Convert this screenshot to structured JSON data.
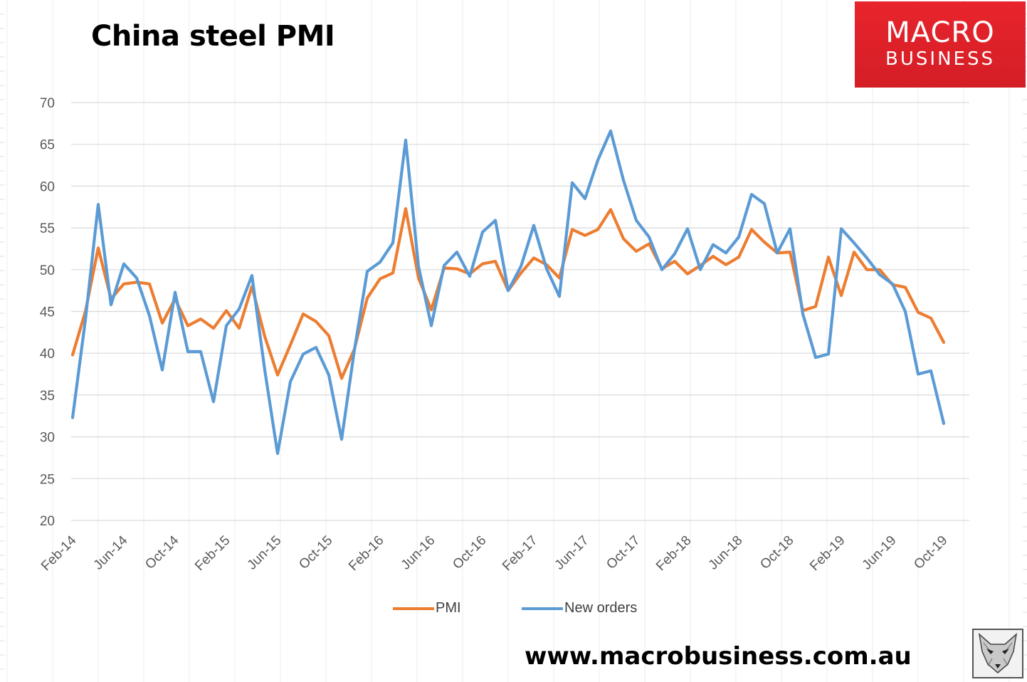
{
  "header": {
    "title": "China steel PMI"
  },
  "brand": {
    "line1": "MACRO",
    "line2": "BUSINESS",
    "color": "#e3222a"
  },
  "footer": {
    "url": "www.macrobusiness.com.au"
  },
  "colors": {
    "pmi": "#ed7d31",
    "new_orders": "#5b9bd5",
    "grid": "#d9d9d9",
    "axis_text": "#595959"
  },
  "chart_data": {
    "type": "line",
    "title": "China steel PMI",
    "xlabel": "",
    "ylabel": "",
    "ylim": [
      20,
      70
    ],
    "yticks": [
      20,
      25,
      30,
      35,
      40,
      45,
      50,
      55,
      60,
      65,
      70
    ],
    "x_start": "Feb-14",
    "x_tick_labels": [
      "Feb-14",
      "Jun-14",
      "Oct-14",
      "Feb-15",
      "Jun-15",
      "Oct-15",
      "Feb-16",
      "Jun-16",
      "Oct-16",
      "Feb-17",
      "Jun-17",
      "Oct-17",
      "Feb-18",
      "Jun-18",
      "Oct-18",
      "Feb-19",
      "Jun-19",
      "Oct-19"
    ],
    "grid": true,
    "legend_position": "bottom",
    "series": [
      {
        "name": "PMI",
        "values": [
          39.8,
          45.0,
          52.6,
          46.5,
          48.3,
          48.5,
          48.3,
          43.6,
          46.5,
          43.3,
          44.1,
          43.0,
          45.1,
          43.0,
          48.0,
          42.0,
          37.4,
          41.0,
          44.7,
          43.8,
          42.1,
          37.0,
          40.5,
          46.6,
          48.9,
          49.6,
          57.3,
          49.0,
          45.2,
          50.2,
          50.1,
          49.5,
          50.7,
          51.0,
          47.5,
          49.6,
          51.4,
          50.6,
          49.0,
          54.8,
          54.1,
          54.8,
          57.2,
          53.7,
          52.2,
          53.1,
          50.1,
          51.0,
          49.5,
          50.5,
          51.6,
          50.6,
          51.5,
          54.8,
          53.3,
          52.0,
          52.1,
          45.1,
          45.6,
          51.5,
          46.9,
          52.1,
          50.0,
          50.0,
          48.2,
          47.9,
          44.9,
          44.2,
          41.3
        ]
      },
      {
        "name": "New orders",
        "values": [
          32.3,
          44.0,
          57.8,
          45.8,
          50.7,
          49.0,
          44.5,
          38.0,
          47.3,
          40.2,
          40.2,
          34.2,
          43.3,
          45.3,
          49.3,
          38.0,
          28.0,
          36.6,
          39.9,
          40.7,
          37.4,
          29.7,
          40.4,
          49.8,
          50.9,
          53.2,
          65.5,
          50.4,
          43.3,
          50.5,
          52.1,
          49.2,
          54.5,
          55.9,
          47.5,
          50.4,
          55.3,
          50.1,
          46.8,
          60.4,
          58.5,
          63.1,
          66.6,
          60.7,
          55.9,
          53.9,
          50.0,
          51.9,
          54.9,
          50.0,
          53.0,
          52.0,
          53.9,
          59.0,
          57.9,
          52.0,
          54.9,
          44.7,
          39.5,
          39.9,
          54.9,
          53.2,
          51.4,
          49.4,
          48.3,
          45.0,
          37.5,
          37.9,
          31.6
        ]
      }
    ]
  }
}
